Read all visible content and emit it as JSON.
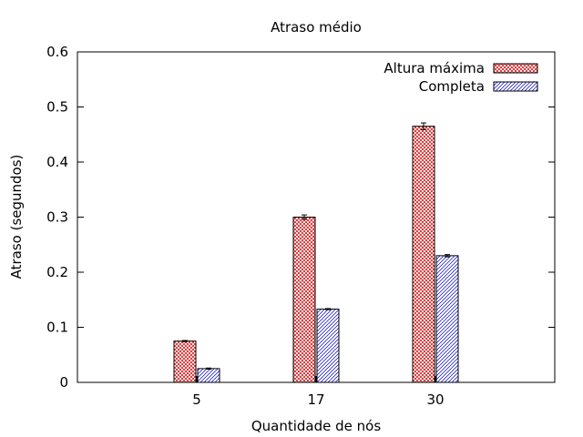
{
  "chart_data": {
    "type": "bar",
    "title": "Atraso médio",
    "xlabel": "Quantidade de nós",
    "ylabel": "Atraso (segundos)",
    "categories": [
      "5",
      "17",
      "30"
    ],
    "ylim": [
      0,
      0.6
    ],
    "yticks": [
      "0",
      "0.1",
      "0.2",
      "0.3",
      "0.4",
      "0.5",
      "0.6"
    ],
    "grid": false,
    "legend_position": "top-right",
    "series": [
      {
        "name": "Altura máxima",
        "values": [
          0.075,
          0.3,
          0.465
        ],
        "errors": [
          0.001,
          0.004,
          0.006
        ],
        "color": "#cc0000",
        "pattern": "crosshatch"
      },
      {
        "name": "Completa",
        "values": [
          0.025,
          0.133,
          0.23
        ],
        "errors": [
          0.001,
          0.001,
          0.002
        ],
        "color": "#0000cc",
        "pattern": "diagonal"
      }
    ]
  }
}
